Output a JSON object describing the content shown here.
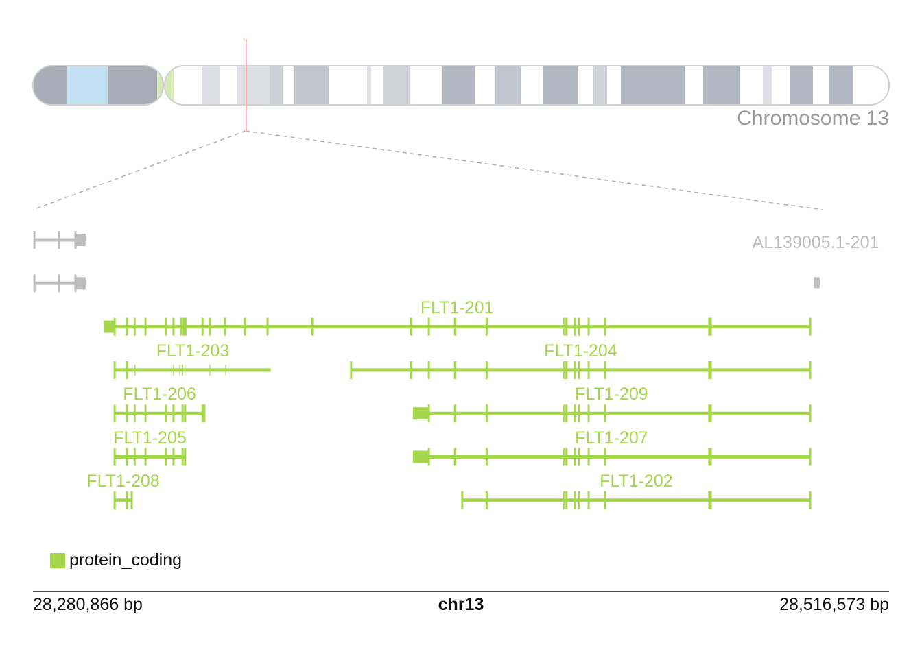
{
  "chromosome": {
    "title": "Chromosome 13"
  },
  "region": {
    "start_label": "28,280,866 bp",
    "end_label": "28,516,573 bp",
    "chrom_label": "chr13",
    "length_kb": 235.707,
    "marker_fraction": 0.249
  },
  "colors": {
    "protein_coding": "#a5d64c",
    "other": "#bdbdbd",
    "marker": "#f08080"
  },
  "legend": {
    "label": "protein_coding"
  },
  "transcripts": [
    {
      "name": "",
      "row": 0,
      "color": "other",
      "start": 0.4,
      "end": 14.5,
      "utr": [
        11.7,
        14.5
      ],
      "exons": [
        0.4,
        7.2,
        11.7
      ],
      "minor": []
    },
    {
      "name": "",
      "row": 1,
      "color": "other",
      "start": 0.4,
      "end": 14.5,
      "utr": [
        11.7,
        14.5
      ],
      "exons": [
        0.4,
        7.2,
        11.7
      ],
      "minor": []
    },
    {
      "name": "AL139005.1-201",
      "row": 1,
      "label_kb": 215.5,
      "label_row": 0.5,
      "color": "other",
      "start": 215.0,
      "end": 216.6,
      "utr": [
        215.0,
        216.6
      ],
      "exons": [],
      "minor": []
    },
    {
      "name": "FLT1-201",
      "row": 2,
      "color": "protein_coding",
      "start": 19.5,
      "end": 214.0,
      "utr": [
        19.5,
        22.5
      ],
      "exons": [
        22.5,
        25.9,
        28.0,
        31.0,
        36.6,
        38.7,
        40.8,
        41.5,
        42.0,
        46.7,
        48.7,
        52.9,
        58.4,
        64.6,
        76.9,
        104.1,
        109.0,
        116.2,
        124.9,
        146.3,
        146.9,
        149.2,
        150.4,
        153.0,
        157.5,
        186.2,
        186.6,
        214.0
      ],
      "minor": []
    },
    {
      "name": "FLT1-203",
      "row": 3,
      "color": "protein_coding",
      "start": 22.5,
      "end": 65.5,
      "thick_end": true,
      "utr": null,
      "exons": [
        22.5,
        25.9
      ],
      "minor": [
        28.1,
        38.7,
        40.4,
        41.2,
        41.9,
        48.7,
        53.1
      ]
    },
    {
      "name": "FLT1-204",
      "row": 3,
      "color": "protein_coding",
      "start": 87.6,
      "end": 214.0,
      "utr": null,
      "exons": [
        87.6,
        104.1,
        109.0,
        116.2,
        124.9,
        146.3,
        146.9,
        149.2,
        150.4,
        153.0,
        157.5,
        186.2,
        186.6,
        214.0
      ],
      "minor": []
    },
    {
      "name": "FLT1-206",
      "row": 4,
      "color": "protein_coding",
      "start": 22.5,
      "end": 47.2,
      "utr": null,
      "exons": [
        22.5,
        25.9,
        28.0,
        31.0,
        36.6,
        38.7,
        41.2,
        41.9,
        46.7,
        47.2
      ],
      "minor": []
    },
    {
      "name": "FLT1-209",
      "row": 4,
      "color": "protein_coding",
      "start": 104.6,
      "end": 214.0,
      "utr": [
        104.6,
        109.2
      ],
      "exons": [
        109.0,
        116.2,
        124.9,
        146.3,
        146.9,
        149.2,
        150.4,
        153.0,
        157.5,
        186.2,
        186.6,
        214.0
      ],
      "minor": []
    },
    {
      "name": "FLT1-205",
      "row": 5,
      "color": "protein_coding",
      "start": 22.5,
      "end": 41.9,
      "utr": null,
      "exons": [
        22.5,
        25.9,
        28.0,
        31.0,
        36.6,
        38.7,
        41.2,
        41.9
      ],
      "minor": []
    },
    {
      "name": "FLT1-207",
      "row": 5,
      "color": "protein_coding",
      "start": 104.6,
      "end": 214.0,
      "utr": [
        104.6,
        109.2
      ],
      "exons": [
        109.0,
        116.2,
        124.9,
        146.3,
        146.9,
        149.2,
        150.4,
        153.0,
        157.5,
        186.2,
        186.6,
        214.0
      ],
      "minor": []
    },
    {
      "name": "FLT1-208",
      "row": 6,
      "color": "protein_coding",
      "start": 22.5,
      "end": 27.2,
      "utr": null,
      "exons": [
        22.5,
        25.9,
        27.2
      ],
      "minor": []
    },
    {
      "name": "FLT1-202",
      "row": 6,
      "color": "protein_coding",
      "start": 118.2,
      "end": 214.0,
      "utr": null,
      "exons": [
        118.2,
        124.9,
        146.3,
        146.9,
        149.2,
        150.4,
        153.0,
        157.5,
        186.2,
        186.6,
        214.0
      ],
      "minor": []
    }
  ]
}
